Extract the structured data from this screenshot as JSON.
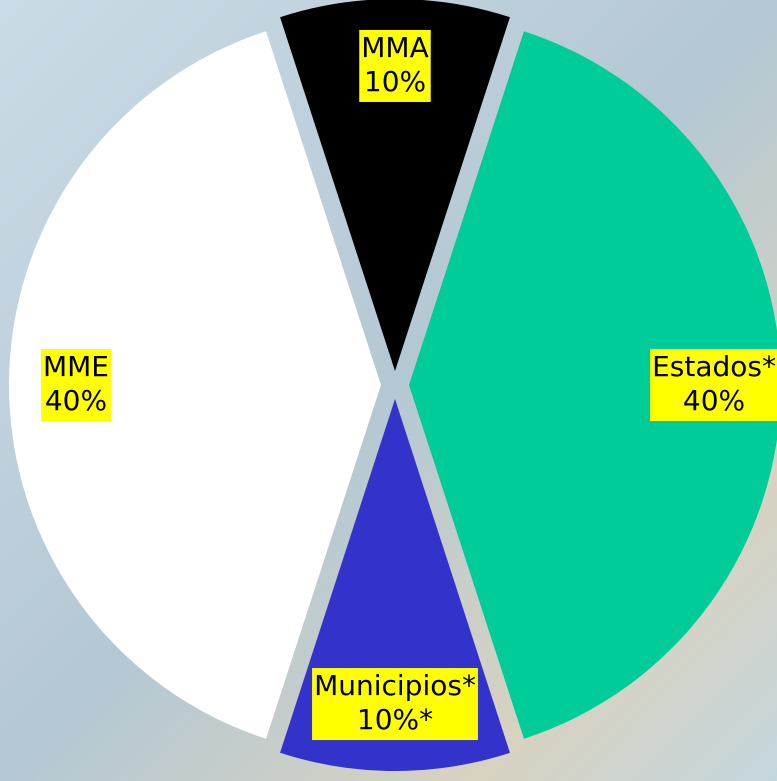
{
  "chart_data": {
    "type": "pie",
    "categories": [
      "MMA",
      "Estados*",
      "Municipios*",
      "MME"
    ],
    "values": [
      10,
      40,
      10,
      40
    ],
    "value_labels": [
      "10%",
      "40%",
      "10%*",
      "40%"
    ],
    "colors": [
      "#000000",
      "#00cc99",
      "#3333cc",
      "#ffffff"
    ]
  }
}
